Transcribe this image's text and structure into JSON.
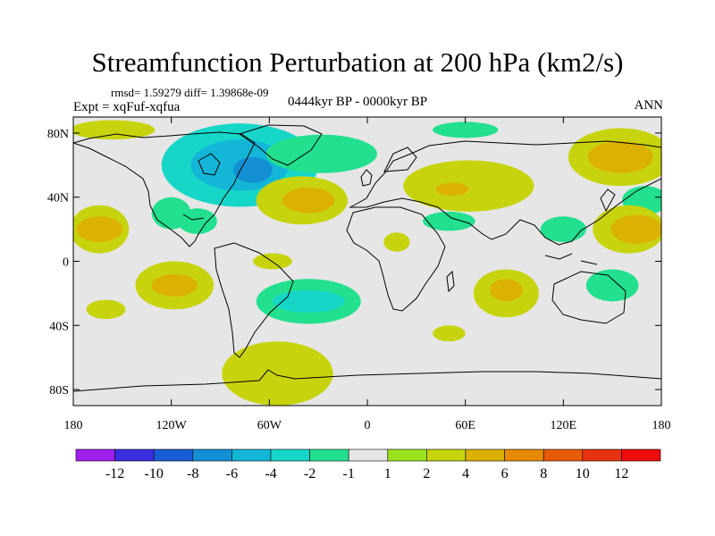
{
  "chart_data": {
    "type": "heatmap",
    "title": "Streamfunction Perturbation at 200 hPa (km2/s)",
    "stats_line": "rmsd= 1.59279  diff= 1.39868e-09",
    "experiment_label": "Expt = xqFuf-xqfua",
    "period_label": "0444kyr BP - 0000kyr BP",
    "season_label": "ANN",
    "x_axis": {
      "range": [
        -180,
        180
      ],
      "ticks": [
        {
          "value": -180,
          "label": "180"
        },
        {
          "value": -120,
          "label": "120W"
        },
        {
          "value": -60,
          "label": "60W"
        },
        {
          "value": 0,
          "label": "0"
        },
        {
          "value": 60,
          "label": "60E"
        },
        {
          "value": 120,
          "label": "120E"
        },
        {
          "value": 180,
          "label": "180"
        }
      ]
    },
    "y_axis": {
      "range": [
        -90,
        90
      ],
      "ticks": [
        {
          "value": 80,
          "label": "80N"
        },
        {
          "value": 40,
          "label": "40N"
        },
        {
          "value": 0,
          "label": "0"
        },
        {
          "value": -40,
          "label": "40S"
        },
        {
          "value": -80,
          "label": "80S"
        }
      ]
    },
    "colorbar": {
      "levels": [
        "-12",
        "-10",
        "-8",
        "-6",
        "-4",
        "-2",
        "-1",
        "1",
        "2",
        "4",
        "6",
        "8",
        "10",
        "12"
      ],
      "colors": [
        "#a020f0",
        "#3a2ee0",
        "#1a5cd6",
        "#138fd3",
        "#14b6d8",
        "#16d6c8",
        "#22e08e",
        "#e6e6e6",
        "#9be21c",
        "#c7d40d",
        "#dbb104",
        "#e68a04",
        "#e65a08",
        "#e63210",
        "#ee0c0c"
      ]
    },
    "anomaly_regions": [
      {
        "lon": -78,
        "lat": 60,
        "rx": 48,
        "ry": 26,
        "value": -3
      },
      {
        "lon": -78,
        "lat": 60,
        "rx": 30,
        "ry": 16,
        "value": -6
      },
      {
        "lon": -70,
        "lat": 57,
        "rx": 12,
        "ry": 8,
        "value": -8
      },
      {
        "lon": -28,
        "lat": 67,
        "rx": 34,
        "ry": 12,
        "value": -2
      },
      {
        "lon": -120,
        "lat": 30,
        "rx": 12,
        "ry": 10,
        "value": -2
      },
      {
        "lon": -104,
        "lat": 25,
        "rx": 12,
        "ry": 8,
        "value": -2
      },
      {
        "lon": -156,
        "lat": 82,
        "rx": 26,
        "ry": 6,
        "value": 2
      },
      {
        "lon": 60,
        "lat": 82,
        "rx": 20,
        "ry": 5,
        "value": -2
      },
      {
        "lon": -40,
        "lat": 38,
        "rx": 28,
        "ry": 15,
        "value": 3
      },
      {
        "lon": -36,
        "lat": 38,
        "rx": 16,
        "ry": 8,
        "value": 5
      },
      {
        "lon": 62,
        "lat": 47,
        "rx": 40,
        "ry": 16,
        "value": 3
      },
      {
        "lon": 52,
        "lat": 45,
        "rx": 10,
        "ry": 4,
        "value": 5
      },
      {
        "lon": 155,
        "lat": 65,
        "rx": 32,
        "ry": 18,
        "value": 2
      },
      {
        "lon": 155,
        "lat": 65,
        "rx": 20,
        "ry": 10,
        "value": 4
      },
      {
        "lon": 50,
        "lat": 25,
        "rx": 16,
        "ry": 6,
        "value": -2
      },
      {
        "lon": 170,
        "lat": 38,
        "rx": 14,
        "ry": 9,
        "value": -2
      },
      {
        "lon": -164,
        "lat": 20,
        "rx": 18,
        "ry": 15,
        "value": 2
      },
      {
        "lon": -164,
        "lat": 20,
        "rx": 14,
        "ry": 8,
        "value": 5
      },
      {
        "lon": 160,
        "lat": 20,
        "rx": 22,
        "ry": 15,
        "value": 2
      },
      {
        "lon": 165,
        "lat": 20,
        "rx": 16,
        "ry": 9,
        "value": 5
      },
      {
        "lon": 120,
        "lat": 20,
        "rx": 14,
        "ry": 8,
        "value": -2
      },
      {
        "lon": 18,
        "lat": 12,
        "rx": 8,
        "ry": 6,
        "value": 2
      },
      {
        "lon": -58,
        "lat": 0,
        "rx": 12,
        "ry": 5,
        "value": 2
      },
      {
        "lon": -118,
        "lat": -15,
        "rx": 24,
        "ry": 15,
        "value": 2
      },
      {
        "lon": -118,
        "lat": -15,
        "rx": 14,
        "ry": 7,
        "value": 5
      },
      {
        "lon": -36,
        "lat": -25,
        "rx": 32,
        "ry": 14,
        "value": -2
      },
      {
        "lon": -36,
        "lat": -25,
        "rx": 22,
        "ry": 7,
        "value": -3
      },
      {
        "lon": 85,
        "lat": -20,
        "rx": 20,
        "ry": 15,
        "value": 2
      },
      {
        "lon": 85,
        "lat": -18,
        "rx": 10,
        "ry": 7,
        "value": 5
      },
      {
        "lon": 150,
        "lat": -15,
        "rx": 16,
        "ry": 10,
        "value": -2
      },
      {
        "lon": -160,
        "lat": -30,
        "rx": 12,
        "ry": 6,
        "value": 2
      },
      {
        "lon": 50,
        "lat": -45,
        "rx": 10,
        "ry": 5,
        "value": 2
      },
      {
        "lon": -55,
        "lat": -70,
        "rx": 34,
        "ry": 20,
        "value": 2
      }
    ]
  }
}
